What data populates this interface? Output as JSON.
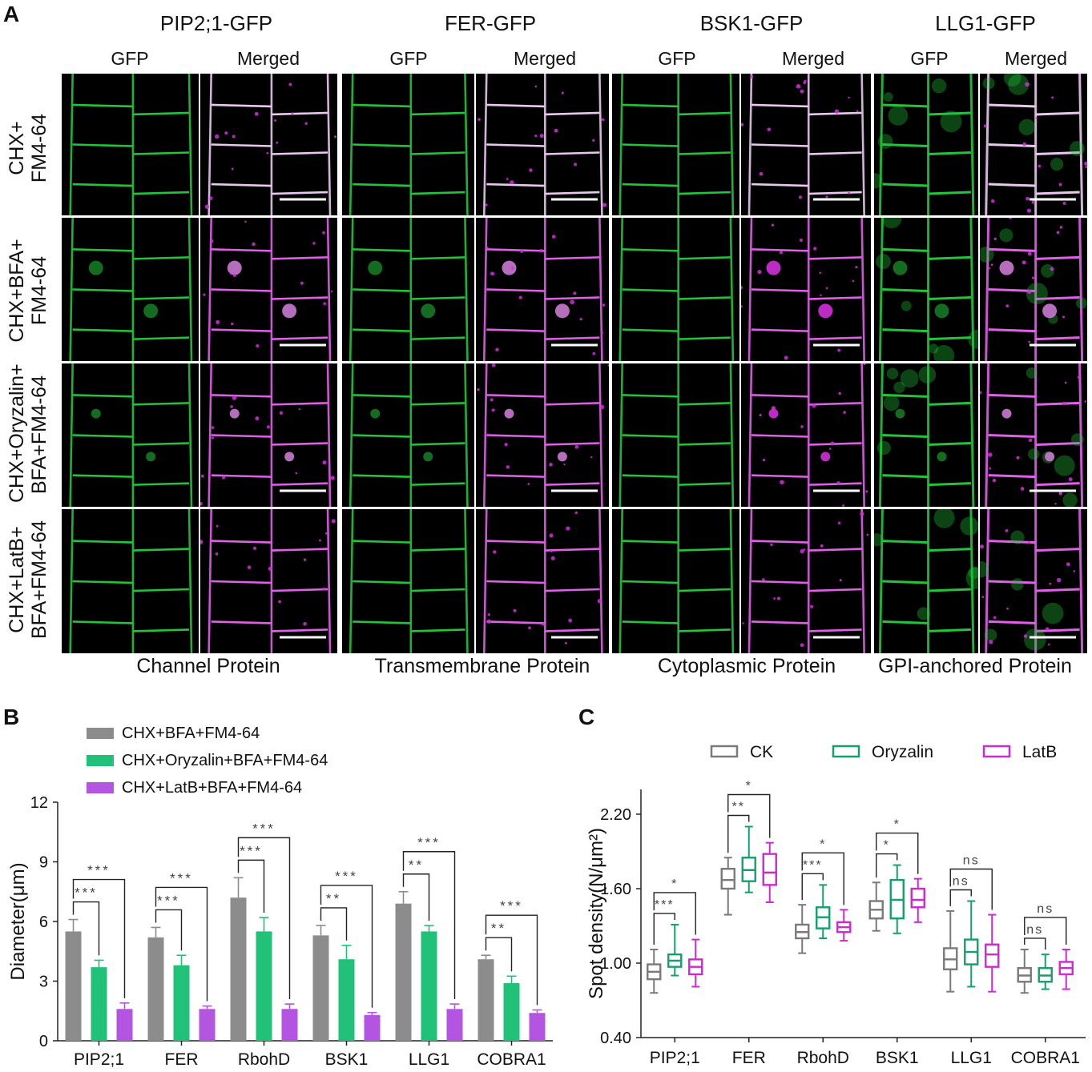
{
  "panel_a": {
    "letter": "A",
    "proteins": [
      {
        "name": "PIP2;1-GFP",
        "category": "Channel Protein"
      },
      {
        "name": "FER-GFP",
        "category": "Transmembrane Protein"
      },
      {
        "name": "BSK1-GFP",
        "category": "Cytoplasmic Protein"
      },
      {
        "name": "LLG1-GFP",
        "category": "GPI-anchored Protein"
      }
    ],
    "channel_labels": {
      "gfp": "GFP",
      "merged": "Merged"
    },
    "rows": [
      {
        "line1": "CHX+",
        "line2": "FM4-64"
      },
      {
        "line1": "CHX+BFA+",
        "line2": "FM4-64"
      },
      {
        "line1": "CHX+Oryzalin+",
        "line2": "BFA+FM4-64"
      },
      {
        "line1": "CHX+LatB+",
        "line2": "BFA+FM4-64"
      }
    ],
    "colors": {
      "gfp": "#22c43a",
      "merged_membrane": "#e060e8",
      "fm464": "#d030d8"
    }
  },
  "panel_b": {
    "letter": "B"
  },
  "panel_c": {
    "letter": "C"
  },
  "chart_data": [
    {
      "type": "bar",
      "title": "",
      "xlabel": "",
      "ylabel": "Diameter(μm)",
      "ylim": [
        0,
        12
      ],
      "yticks": [
        "0",
        "3",
        "6",
        "9",
        "12"
      ],
      "categories": [
        "PIP2;1",
        "FER",
        "RbohD",
        "BSK1",
        "LLG1",
        "COBRA1"
      ],
      "series": [
        {
          "name": "CHX+BFA+FM4-64",
          "color": "#8c8c8c",
          "values": [
            5.5,
            5.2,
            7.2,
            5.3,
            6.9,
            4.1
          ],
          "errors": [
            0.6,
            0.5,
            1.0,
            0.5,
            0.6,
            0.2
          ]
        },
        {
          "name": "CHX+Oryzalin+BFA+FM4-64",
          "color": "#21c17a",
          "values": [
            3.7,
            3.8,
            5.5,
            4.1,
            5.5,
            2.9
          ],
          "errors": [
            0.35,
            0.5,
            0.7,
            0.7,
            0.3,
            0.35
          ]
        },
        {
          "name": "CHX+LatB+BFA+FM4-64",
          "color": "#b355e0",
          "values": [
            1.6,
            1.6,
            1.6,
            1.3,
            1.6,
            1.4
          ],
          "errors": [
            0.3,
            0.15,
            0.25,
            0.12,
            0.25,
            0.15
          ]
        }
      ],
      "significance": [
        {
          "category": "PIP2;1",
          "short": "***",
          "long": "***"
        },
        {
          "category": "FER",
          "short": "***",
          "long": "***"
        },
        {
          "category": "RbohD",
          "short": "***",
          "long": "***"
        },
        {
          "category": "BSK1",
          "short": "**",
          "long": "***"
        },
        {
          "category": "LLG1",
          "short": "**",
          "long": "***"
        },
        {
          "category": "COBRA1",
          "short": "**",
          "long": "***"
        }
      ]
    },
    {
      "type": "box",
      "title": "",
      "xlabel": "",
      "ylabel": "Spot density(N/μm²)",
      "ylim": [
        0.4,
        2.4
      ],
      "yticks": [
        "0.40",
        "1.00",
        "1.60",
        "2.20"
      ],
      "categories": [
        "PIP2;1",
        "FER",
        "RbohD",
        "BSK1",
        "LLG1",
        "COBRA1"
      ],
      "series": [
        {
          "name": "CK",
          "color": "#7a7a7a",
          "boxes": [
            {
              "min": 0.76,
              "q1": 0.87,
              "median": 0.93,
              "q3": 0.99,
              "max": 1.11
            },
            {
              "min": 1.39,
              "q1": 1.6,
              "median": 1.67,
              "q3": 1.76,
              "max": 1.85
            },
            {
              "min": 1.08,
              "q1": 1.2,
              "median": 1.25,
              "q3": 1.31,
              "max": 1.47
            },
            {
              "min": 1.26,
              "q1": 1.36,
              "median": 1.43,
              "q3": 1.5,
              "max": 1.65
            },
            {
              "min": 0.77,
              "q1": 0.95,
              "median": 1.03,
              "q3": 1.12,
              "max": 1.42
            },
            {
              "min": 0.76,
              "q1": 0.85,
              "median": 0.9,
              "q3": 0.96,
              "max": 1.11
            }
          ]
        },
        {
          "name": "Oryzalin",
          "color": "#14a06a",
          "boxes": [
            {
              "min": 0.9,
              "q1": 0.97,
              "median": 1.02,
              "q3": 1.07,
              "max": 1.31
            },
            {
              "min": 1.57,
              "q1": 1.66,
              "median": 1.75,
              "q3": 1.85,
              "max": 2.1
            },
            {
              "min": 1.2,
              "q1": 1.28,
              "median": 1.37,
              "q3": 1.45,
              "max": 1.63
            },
            {
              "min": 1.24,
              "q1": 1.36,
              "median": 1.51,
              "q3": 1.67,
              "max": 1.79
            },
            {
              "min": 0.81,
              "q1": 0.99,
              "median": 1.09,
              "q3": 1.19,
              "max": 1.5
            },
            {
              "min": 0.79,
              "q1": 0.85,
              "median": 0.9,
              "q3": 0.96,
              "max": 1.07
            }
          ]
        },
        {
          "name": "LatB",
          "color": "#cc2ad0",
          "boxes": [
            {
              "min": 0.81,
              "q1": 0.91,
              "median": 0.97,
              "q3": 1.03,
              "max": 1.19
            },
            {
              "min": 1.49,
              "q1": 1.63,
              "median": 1.73,
              "q3": 1.88,
              "max": 1.97
            },
            {
              "min": 1.18,
              "q1": 1.25,
              "median": 1.29,
              "q3": 1.33,
              "max": 1.43
            },
            {
              "min": 1.33,
              "q1": 1.45,
              "median": 1.51,
              "q3": 1.6,
              "max": 1.68
            },
            {
              "min": 0.77,
              "q1": 0.97,
              "median": 1.07,
              "q3": 1.15,
              "max": 1.39
            },
            {
              "min": 0.79,
              "q1": 0.91,
              "median": 0.96,
              "q3": 1.01,
              "max": 1.11
            }
          ]
        }
      ],
      "significance": [
        {
          "category": "PIP2;1",
          "short": "***",
          "long": "*"
        },
        {
          "category": "FER",
          "short": "**",
          "long": "*"
        },
        {
          "category": "RbohD",
          "short": "***",
          "long": "*"
        },
        {
          "category": "BSK1",
          "short": "*",
          "long": "*"
        },
        {
          "category": "LLG1",
          "short": "ns",
          "long": "ns"
        },
        {
          "category": "COBRA1",
          "short": "ns",
          "long": "ns"
        }
      ]
    }
  ]
}
